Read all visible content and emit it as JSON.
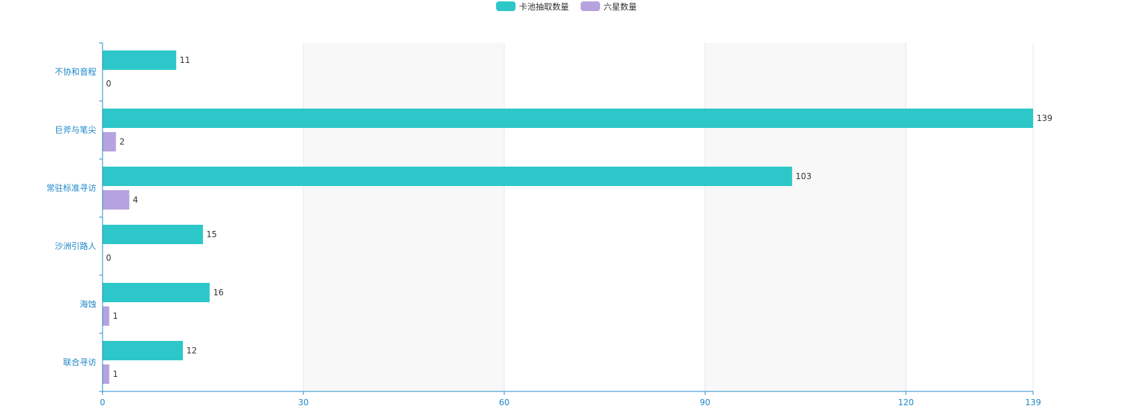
{
  "chart_data": {
    "type": "bar",
    "orientation": "horizontal",
    "categories": [
      "不协和音程",
      "巨斧与笔尖",
      "常驻标准寻访",
      "沙洲引路人",
      "海蚀",
      "联合寻访"
    ],
    "series": [
      {
        "name": "卡池抽取数量",
        "values": [
          11,
          139,
          103,
          15,
          16,
          12
        ],
        "color": "#2ec7c9"
      },
      {
        "name": "六星数量",
        "values": [
          0,
          2,
          4,
          0,
          1,
          1
        ],
        "color": "#b6a2de"
      }
    ],
    "xlim": [
      0,
      139
    ],
    "x_ticks": [
      "0",
      "30",
      "60",
      "90",
      "120",
      "139"
    ],
    "x_tick_values": [
      0,
      30,
      60,
      90,
      120,
      139
    ],
    "legend_position": "top-center",
    "split_area": true,
    "axis_color": "#1e88c8",
    "split_area_colors": [
      "#ffffff",
      "#f8f8f8"
    ]
  }
}
